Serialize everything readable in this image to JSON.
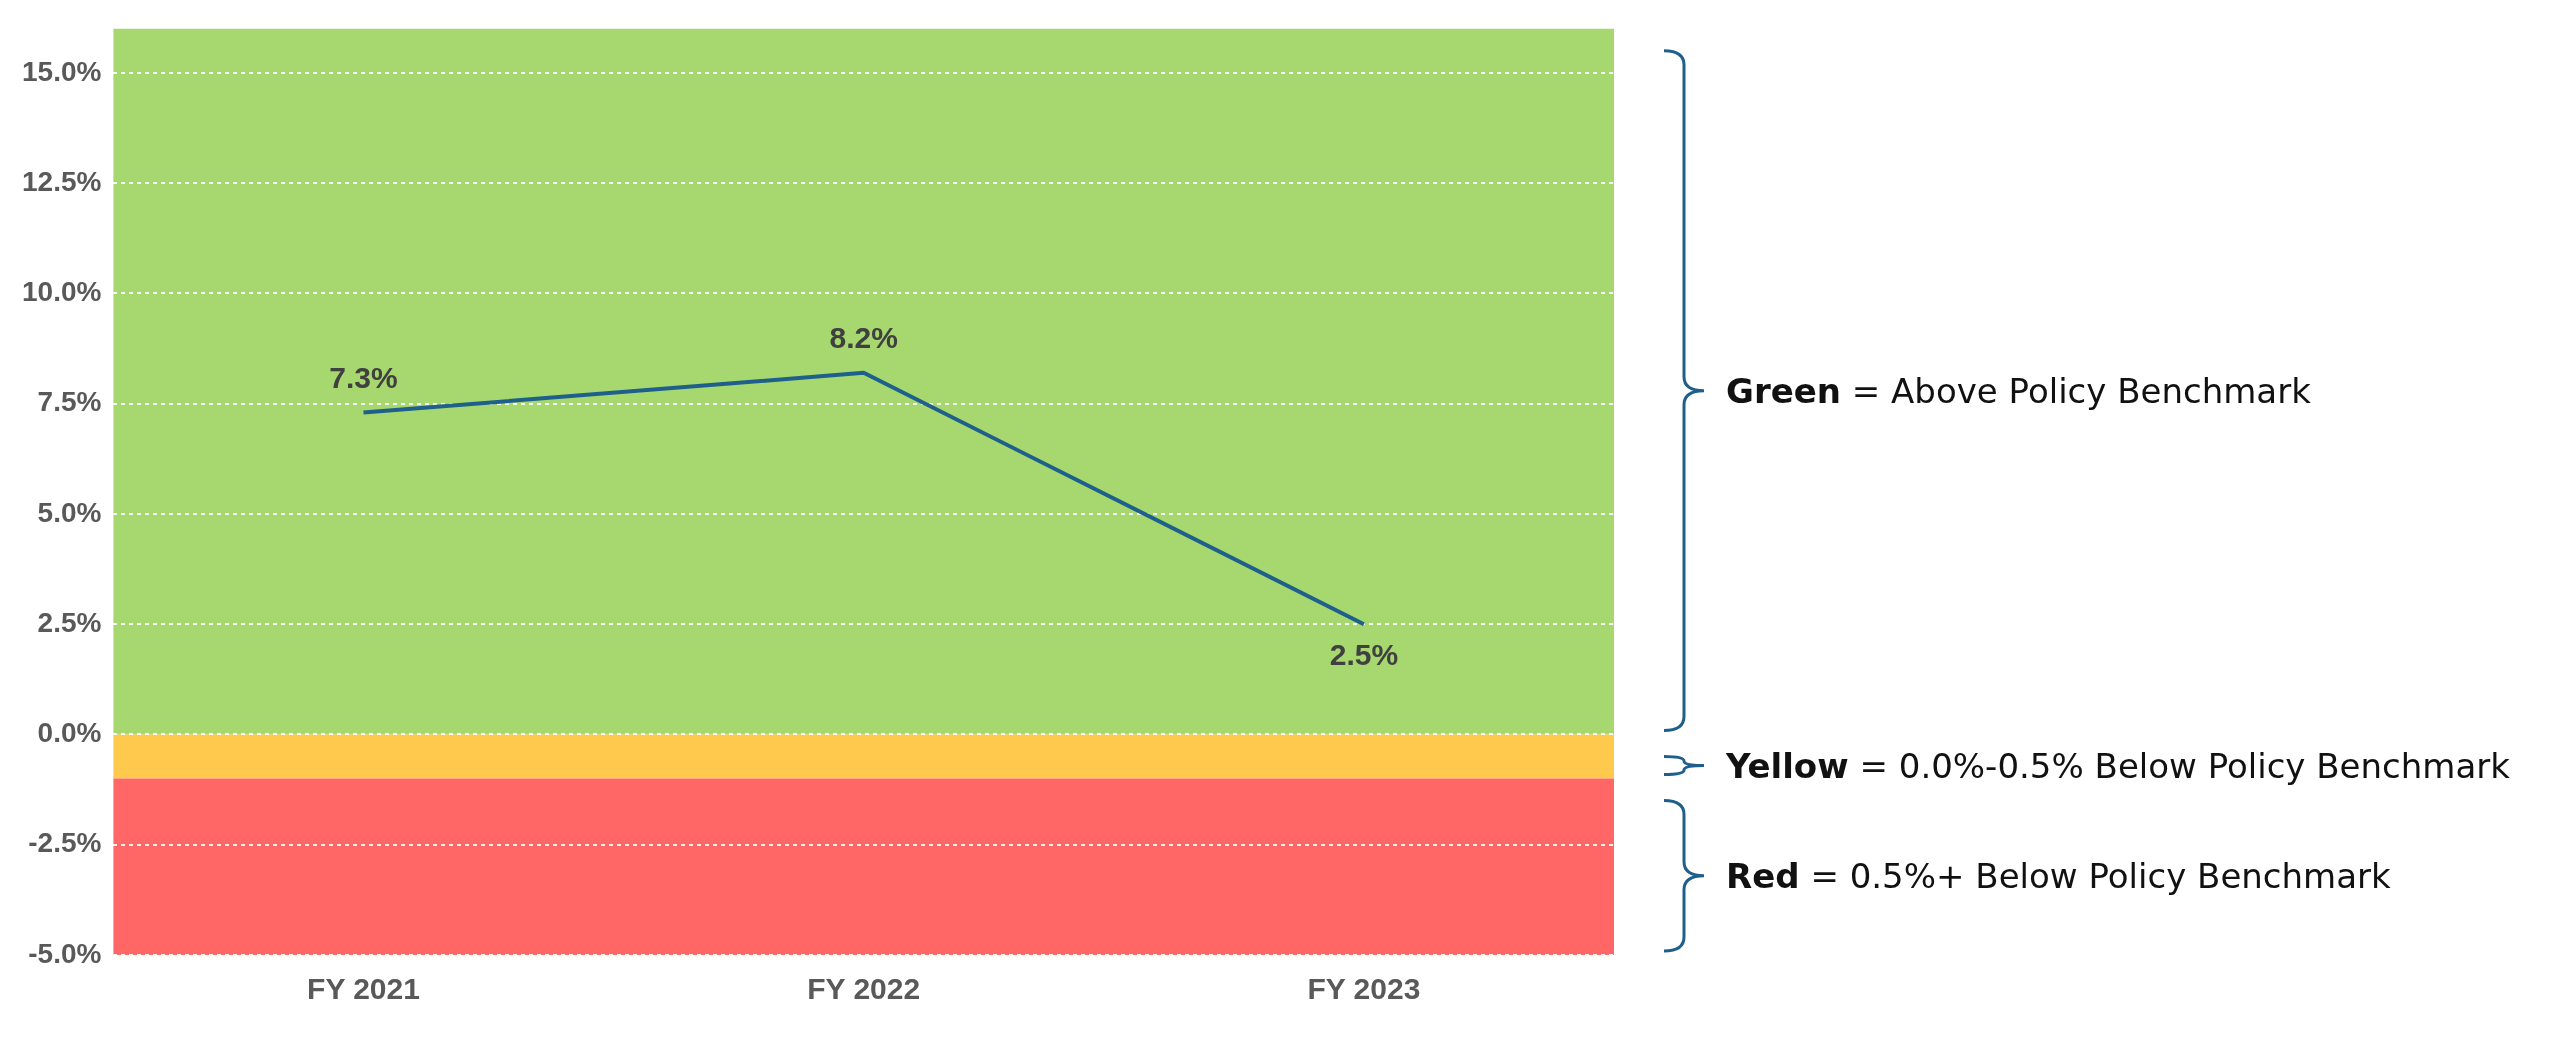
{
  "chart_data": {
    "type": "line",
    "categories": [
      "FY 2021",
      "FY 2022",
      "FY 2023"
    ],
    "series": [
      {
        "color": "#1f5f8b",
        "values": [
          7.3,
          8.2,
          2.5
        ],
        "value_labels": [
          "7.3%",
          "8.2%",
          "2.5%"
        ]
      }
    ],
    "ylim": [
      -5,
      16
    ],
    "yticks": [
      {
        "value": -5,
        "label": "-5.0%"
      },
      {
        "value": -2.5,
        "label": "-2.5%"
      },
      {
        "value": 0,
        "label": "0.0%"
      },
      {
        "value": 2.5,
        "label": "2.5%"
      },
      {
        "value": 5,
        "label": "5.0%"
      },
      {
        "value": 7.5,
        "label": "7.5%"
      },
      {
        "value": 10,
        "label": "10.0%"
      },
      {
        "value": 12.5,
        "label": "12.5%"
      },
      {
        "value": 15,
        "label": "15.0%"
      }
    ],
    "grid": "y",
    "marker": "none",
    "line_style": "solid",
    "bands": [
      {
        "axis": "y",
        "from": 0,
        "to": 16,
        "color": "#a6d86f"
      },
      {
        "axis": "y",
        "from": -1,
        "to": 0,
        "color": "#ffc94d"
      },
      {
        "axis": "y",
        "from": -5,
        "to": -1,
        "color": "#ff6666"
      }
    ],
    "annotations": [
      "Green = Above Policy Benchmark",
      "Yellow = 0.0%-0.5% Below Policy Benchmark",
      "Red = 0.5%+ Below Policy Benchmark"
    ]
  }
}
